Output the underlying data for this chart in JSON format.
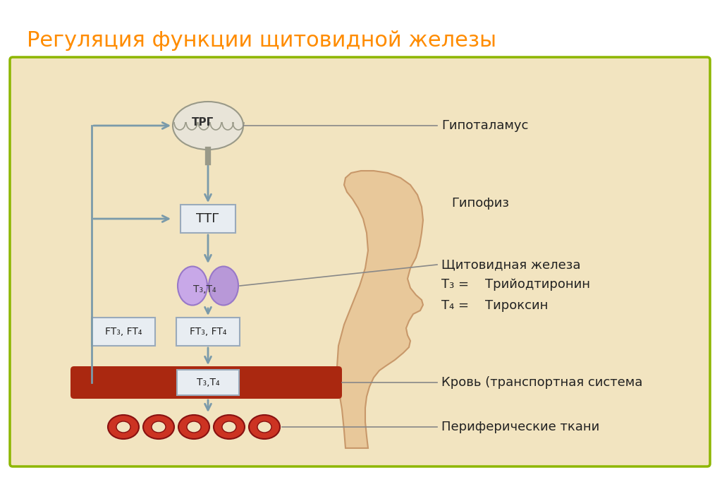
{
  "title": "Регуляция функции щитовидной железы",
  "title_color": "#FF8C00",
  "title_fontsize": 22,
  "bg_color": "#FFFFFF",
  "diagram_bg": "#F2E4C0",
  "border_color": "#8DB600",
  "border_linewidth": 2.5,
  "label_hypothalamus": "Гипоталамус",
  "label_pituitary": "Гипофиз",
  "label_thyroid": "Щитовидная железа",
  "label_t3": "Т₃ =    Трийодтиронин",
  "label_t4": "Т₄ =    Тироксин",
  "label_blood": "Кровь (транспортная система",
  "label_peripheral": "Периферические ткани",
  "label_trg": "ТРГ",
  "label_ttg": "ТТГ",
  "label_t3t4_thyroid": "Т₃,Т₄",
  "label_ft3ft4_left": "FT₃, FT₄",
  "label_ft3ft4_right": "FT₃, FT₄",
  "label_t3t4_blood": "Т₃,Т₄",
  "arrow_color": "#7A9AAA",
  "box_facecolor": "#E8EDF2",
  "box_edge": "#9AAABB",
  "brain_color": "#E8E4D8",
  "brain_edge": "#999988",
  "thyroid_color_left": "#C8A8E8",
  "thyroid_color_right": "#B898D8",
  "blood_vessel_color": "#AA2810",
  "cell_color": "#CC3322",
  "cell_inner": "#F2E4C0",
  "face_skin": "#E8C89A",
  "face_outline": "#C8986A",
  "line_color": "#888888",
  "text_color": "#222222"
}
